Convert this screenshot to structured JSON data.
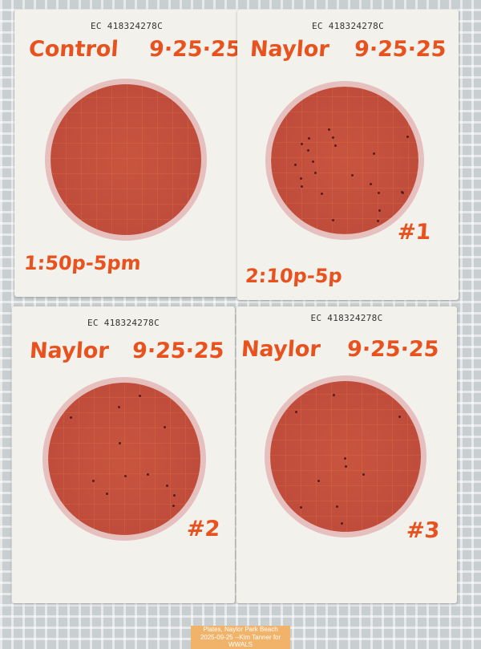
{
  "plates": [
    {
      "code": "EC 418324278C",
      "name": "Control",
      "date": "9·25·25",
      "time": "1:50p-5pm",
      "number": ""
    },
    {
      "code": "EC 418324278C",
      "name": "Naylor",
      "date": "9·25·25",
      "time": "2:10p-5p",
      "number": "#1"
    },
    {
      "code": "EC 418324278C",
      "name": "Naylor",
      "date": "9·25·25",
      "time": "",
      "number": "#2"
    },
    {
      "code": "EC 418324278C",
      "name": "Naylor",
      "date": "9·25·25",
      "time": "",
      "number": "#3"
    }
  ],
  "caption": {
    "line1": "Plates, Naylor Park Beach",
    "line2": "2025-09-25 --Kim Tanner for WWALS"
  },
  "colors": {
    "ink": "#e8521f",
    "medium": "#c8553f"
  }
}
